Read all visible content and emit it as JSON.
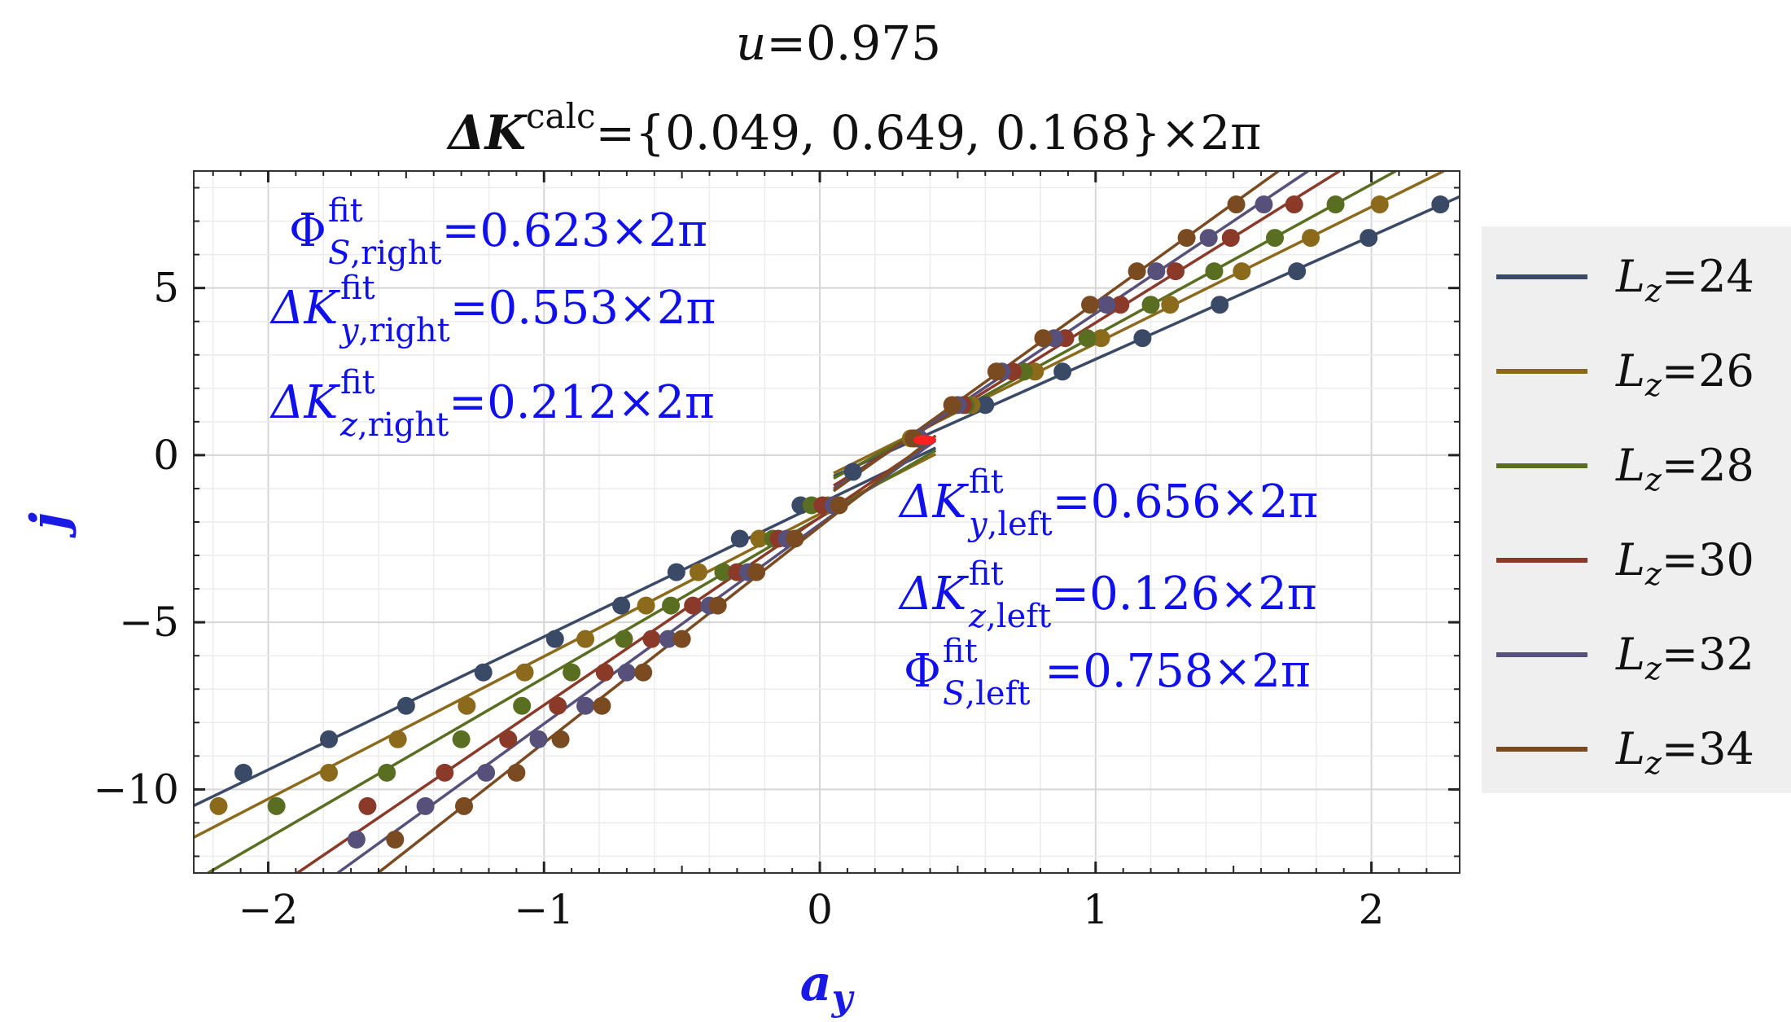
{
  "chart_data": {
    "type": "scatter",
    "title": {
      "line1": "u=0.975",
      "line2": "ΔK^calc={0.049, 0.649, 0.168}×2π",
      "delta_k_label": "ΔK",
      "superscript": "calc",
      "values_text": "={0.049, 0.649, 0.168}×2π"
    },
    "xlabel": "a_y",
    "ylabel": "j",
    "xlim": [
      -2.27,
      2.32
    ],
    "ylim": [
      -12.5,
      8.5
    ],
    "xticks": [
      -2,
      -1,
      0,
      1,
      2
    ],
    "xtick_labels": [
      "−2",
      "−1",
      "0",
      "1",
      "2"
    ],
    "yticks": [
      -10,
      -5,
      0,
      5
    ],
    "ytick_labels": [
      "−10",
      "−5",
      "0",
      "5"
    ],
    "grid": true,
    "legend_position": "right-outside",
    "fits": {
      "right": {
        "phi_s": 0.623,
        "dk_y": 0.553,
        "dk_z": 0.212
      },
      "left": {
        "dk_y": 0.656,
        "dk_z": 0.126,
        "phi_s": 0.758
      }
    },
    "annotations": {
      "right": [
        {
          "sym": "Φ",
          "sub": "S,right",
          "sup": "fit",
          "value": "=0.623×2π"
        },
        {
          "sym": "ΔK",
          "sub": "y,right",
          "sup": "fit",
          "value": "=0.553×2π"
        },
        {
          "sym": "ΔK",
          "sub": "z,right",
          "sup": "fit",
          "value": "=0.212×2π"
        }
      ],
      "left": [
        {
          "sym": "ΔK",
          "sub": "y,left",
          "sup": "fit",
          "value": "=0.656×2π"
        },
        {
          "sym": "ΔK",
          "sub": "z,left",
          "sup": "fit",
          "value": "=0.126×2π"
        },
        {
          "sym": "Φ",
          "sub": "S,left",
          "sup": "fit",
          "value": " =0.758×2π"
        }
      ]
    },
    "crossing_point": [
      0.38,
      0.45
    ],
    "series": [
      {
        "name": "Lz=24",
        "label_italic": "L",
        "label_sub": "z",
        "label_value": "=24",
        "color": "#3a4a66",
        "right": {
          "x": [
            0.12,
            0.35,
            0.6,
            0.88,
            1.17,
            1.45,
            1.73,
            1.99,
            2.25
          ],
          "y": [
            -0.5,
            0.5,
            1.5,
            2.5,
            3.5,
            4.5,
            5.5,
            6.5,
            7.5
          ]
        },
        "left": {
          "x": [
            -0.07,
            -0.29,
            -0.52,
            -0.72,
            -0.96,
            -1.22,
            -1.5,
            -1.78,
            -2.09
          ],
          "y": [
            -1.5,
            -2.5,
            -3.5,
            -4.5,
            -5.5,
            -6.5,
            -7.5,
            -8.5,
            -9.5
          ]
        }
      },
      {
        "name": "Lz=26",
        "label_italic": "L",
        "label_sub": "z",
        "label_value": "=26",
        "color": "#8c6a1c",
        "right": {
          "x": [
            0.33,
            0.55,
            0.78,
            1.02,
            1.27,
            1.53,
            1.78,
            2.03
          ],
          "y": [
            0.5,
            1.5,
            2.5,
            3.5,
            4.5,
            5.5,
            6.5,
            7.5
          ]
        },
        "left": {
          "x": [
            0.03,
            -0.22,
            -0.44,
            -0.63,
            -0.85,
            -1.07,
            -1.28,
            -1.53,
            -1.78,
            -2.18
          ],
          "y": [
            -1.5,
            -2.5,
            -3.5,
            -4.5,
            -5.5,
            -6.5,
            -7.5,
            -8.5,
            -9.5,
            -10.5
          ]
        }
      },
      {
        "name": "Lz=28",
        "label_italic": "L",
        "label_sub": "z",
        "label_value": "=28",
        "color": "#5a6e22",
        "right": {
          "x": [
            0.34,
            0.53,
            0.74,
            0.97,
            1.2,
            1.43,
            1.65,
            1.87
          ],
          "y": [
            0.5,
            1.5,
            2.5,
            3.5,
            4.5,
            5.5,
            6.5,
            7.5
          ]
        },
        "left": {
          "x": [
            -0.03,
            -0.17,
            -0.35,
            -0.54,
            -0.71,
            -0.9,
            -1.08,
            -1.3,
            -1.57,
            -1.97
          ],
          "y": [
            -1.5,
            -2.5,
            -3.5,
            -4.5,
            -5.5,
            -6.5,
            -7.5,
            -8.5,
            -9.5,
            -10.5
          ]
        }
      },
      {
        "name": "Lz=30",
        "label_italic": "L",
        "label_sub": "z",
        "label_value": "=30",
        "color": "#8b3a2a",
        "right": {
          "x": [
            0.36,
            0.52,
            0.7,
            0.89,
            1.09,
            1.29,
            1.49,
            1.72
          ],
          "y": [
            0.5,
            1.5,
            2.5,
            3.5,
            4.5,
            5.5,
            6.5,
            7.5
          ]
        },
        "left": {
          "x": [
            0.01,
            -0.15,
            -0.3,
            -0.46,
            -0.61,
            -0.78,
            -0.95,
            -1.13,
            -1.36,
            -1.64
          ],
          "y": [
            -1.5,
            -2.5,
            -3.5,
            -4.5,
            -5.5,
            -6.5,
            -7.5,
            -8.5,
            -9.5,
            -10.5
          ]
        }
      },
      {
        "name": "Lz=32",
        "label_italic": "L",
        "label_sub": "z",
        "label_value": "=32",
        "color": "#57507a",
        "right": {
          "x": [
            0.36,
            0.5,
            0.66,
            0.85,
            1.04,
            1.22,
            1.41,
            1.61
          ],
          "y": [
            0.5,
            1.5,
            2.5,
            3.5,
            4.5,
            5.5,
            6.5,
            7.5
          ]
        },
        "left": {
          "x": [
            0.05,
            -0.12,
            -0.26,
            -0.4,
            -0.55,
            -0.7,
            -0.85,
            -1.02,
            -1.21,
            -1.43,
            -1.68
          ],
          "y": [
            -1.5,
            -2.5,
            -3.5,
            -4.5,
            -5.5,
            -6.5,
            -7.5,
            -8.5,
            -9.5,
            -10.5,
            -11.5
          ]
        }
      },
      {
        "name": "Lz=34",
        "label_italic": "L",
        "label_sub": "z",
        "label_value": "=34",
        "color": "#7a4a20",
        "right": {
          "x": [
            0.34,
            0.48,
            0.64,
            0.81,
            0.98,
            1.15,
            1.33,
            1.51
          ],
          "y": [
            0.5,
            1.5,
            2.5,
            3.5,
            4.5,
            5.5,
            6.5,
            7.5
          ]
        },
        "left": {
          "x": [
            0.07,
            -0.09,
            -0.23,
            -0.37,
            -0.5,
            -0.64,
            -0.79,
            -0.94,
            -1.1,
            -1.29,
            -1.54
          ],
          "y": [
            -1.5,
            -2.5,
            -3.5,
            -4.5,
            -5.5,
            -6.5,
            -7.5,
            -8.5,
            -9.5,
            -10.5,
            -11.5
          ]
        }
      }
    ]
  }
}
